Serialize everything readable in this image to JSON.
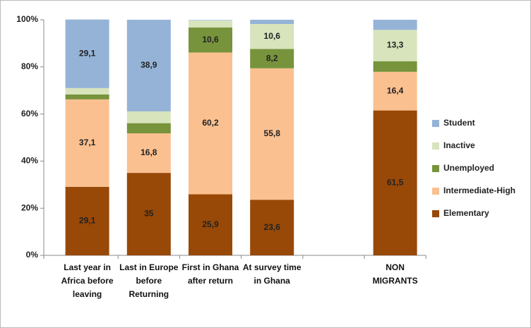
{
  "chart_data": {
    "type": "stacked_bar",
    "categories": [
      "Last year in Africa before leaving",
      "Last in Europe before Returning",
      "First in Ghana after return",
      "At survey time in Ghana",
      null,
      "NON MIGRANTS"
    ],
    "series": [
      {
        "name": "Elementary",
        "color": "#984807",
        "values": [
          29.1,
          35,
          25.9,
          23.6,
          null,
          61.5
        ],
        "value_labels": [
          "29,1",
          "35",
          "25,9",
          "23,6",
          null,
          "61,5"
        ]
      },
      {
        "name": "Intermediate-High",
        "color": "#fac090",
        "values": [
          37.1,
          16.8,
          60.2,
          55.8,
          null,
          16.4
        ],
        "value_labels": [
          "37,1",
          "16,8",
          "60,2",
          "55,8",
          null,
          "16,4"
        ]
      },
      {
        "name": "Unemployed",
        "color": "#77933c",
        "values": [
          2.1,
          4.3,
          10.6,
          8.2,
          null,
          4.5
        ],
        "value_labels": [
          "2,1",
          "4,3",
          "10,6",
          "8,2",
          null,
          "4,5"
        ]
      },
      {
        "name": "Inactive",
        "color": "#d7e4bc",
        "values": [
          2.7,
          5,
          3,
          10.6,
          null,
          13.3
        ],
        "value_labels": [
          "2,7",
          "5",
          "3",
          "10,6",
          null,
          "13,3"
        ]
      },
      {
        "name": "Student",
        "color": "#95b3d7",
        "values": [
          29.1,
          38.9,
          0.2,
          1.8,
          null,
          4.3
        ],
        "value_labels": [
          "29,1",
          "38,9",
          "0,2",
          "1,8",
          null,
          "4,3"
        ]
      }
    ],
    "ylim": [
      0,
      100
    ],
    "yticks": [
      {
        "value": 0,
        "label": "0%"
      },
      {
        "value": 20,
        "label": "20%"
      },
      {
        "value": 40,
        "label": "40%"
      },
      {
        "value": 60,
        "label": "60%"
      },
      {
        "value": 80,
        "label": "80%"
      },
      {
        "value": 100,
        "label": "100%"
      }
    ],
    "legend": "right"
  }
}
